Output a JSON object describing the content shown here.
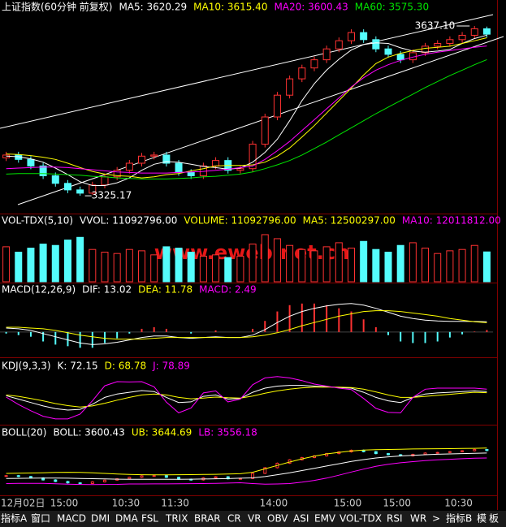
{
  "chart_data": [
    {
      "type": "candlestick",
      "header": [
        {
          "text": "上证指数(60分钟 前复权)",
          "color": "#ffffff"
        },
        {
          "text": "MA5: 3620.29",
          "color": "#ffffff"
        },
        {
          "text": "MA10: 3615.40",
          "color": "#ffff00"
        },
        {
          "text": "MA20: 3600.43",
          "color": "#ff00ff"
        },
        {
          "text": "MA60: 3575.30",
          "color": "#00e600"
        }
      ],
      "ylim": [
        3297,
        3652
      ],
      "candles": {
        "open": [
          3395,
          3400,
          3392,
          3380,
          3362,
          3348,
          3336,
          3330,
          3345,
          3360,
          3372,
          3385,
          3398,
          3400,
          3385,
          3368,
          3362,
          3380,
          3390,
          3372,
          3375,
          3420,
          3470,
          3510,
          3540,
          3560,
          3575,
          3595,
          3610,
          3625,
          3612,
          3595,
          3585,
          3575,
          3588,
          3600,
          3605,
          3612,
          3620,
          3632
        ],
        "high": [
          3406,
          3406,
          3398,
          3386,
          3368,
          3354,
          3342,
          3351,
          3366,
          3378,
          3391,
          3404,
          3406,
          3406,
          3391,
          3374,
          3386,
          3396,
          3396,
          3381,
          3426,
          3476,
          3516,
          3546,
          3566,
          3581,
          3601,
          3616,
          3631,
          3631,
          3618,
          3601,
          3591,
          3594,
          3606,
          3611,
          3618,
          3626,
          3637.1,
          3636
        ],
        "low": [
          3389,
          3386,
          3374,
          3356,
          3342,
          3330,
          3325.17,
          3327,
          3339,
          3354,
          3366,
          3379,
          3392,
          3379,
          3362,
          3356,
          3356,
          3374,
          3366,
          3366,
          3369,
          3414,
          3464,
          3504,
          3534,
          3554,
          3569,
          3589,
          3604,
          3606,
          3589,
          3579,
          3569,
          3569,
          3582,
          3594,
          3599,
          3606,
          3614,
          3616
        ],
        "close": [
          3400,
          3392,
          3380,
          3362,
          3348,
          3336,
          3330,
          3345,
          3360,
          3372,
          3385,
          3398,
          3400,
          3385,
          3368,
          3362,
          3380,
          3390,
          3372,
          3375,
          3420,
          3470,
          3510,
          3540,
          3560,
          3575,
          3595,
          3610,
          3625,
          3612,
          3595,
          3585,
          3575,
          3588,
          3600,
          3605,
          3612,
          3620,
          3632,
          3622
        ]
      },
      "up_color": "#ff3232",
      "down_color": "#54fcfc",
      "series": [
        {
          "color": "#ffffff",
          "values": [
            3398,
            3397,
            3393,
            3387,
            3376,
            3364,
            3351,
            3344,
            3344,
            3349,
            3358,
            3372,
            3383,
            3388,
            3387,
            3383,
            3379,
            3377,
            3374,
            3376,
            3387,
            3405,
            3429,
            3463,
            3500,
            3531,
            3556,
            3576,
            3593,
            3603,
            3606,
            3605,
            3597,
            3591,
            3589,
            3591,
            3594,
            3605,
            3614,
            3620.29
          ]
        },
        {
          "color": "#ffff00",
          "values": [
            3402,
            3401,
            3399,
            3396,
            3392,
            3385,
            3377,
            3370,
            3365,
            3362,
            3361,
            3358,
            3360,
            3364,
            3366,
            3371,
            3375,
            3380,
            3381,
            3381,
            3382,
            3387,
            3398,
            3413,
            3433,
            3454,
            3477,
            3500,
            3523,
            3547,
            3568,
            3580,
            3587,
            3592,
            3596,
            3598,
            3600,
            3605,
            3610,
            3615.4
          ]
        },
        {
          "color": "#ff00ff",
          "values": [
            3375,
            3376,
            3377,
            3378,
            3378,
            3377,
            3375,
            3373,
            3371,
            3369,
            3368,
            3367,
            3367,
            3367,
            3368,
            3369,
            3370,
            3372,
            3374,
            3377,
            3380,
            3392,
            3408,
            3425,
            3445,
            3465,
            3485,
            3505,
            3525,
            3542,
            3556,
            3566,
            3574,
            3580,
            3585,
            3589,
            3592,
            3595,
            3598,
            3600.43
          ]
        },
        {
          "color": "#00e600",
          "values": [
            3365,
            3366,
            3366,
            3366,
            3365,
            3364,
            3363,
            3361,
            3360,
            3358,
            3357,
            3356,
            3356,
            3356,
            3357,
            3358,
            3360,
            3361,
            3363,
            3365,
            3369,
            3375,
            3382,
            3390,
            3400,
            3412,
            3424,
            3437,
            3450,
            3463,
            3476,
            3488,
            3500,
            3512,
            3524,
            3535,
            3546,
            3556,
            3566,
            3575.3
          ]
        }
      ],
      "annotations": [
        {
          "text": "3325.17",
          "index": 6,
          "value": 3325.17
        },
        {
          "text": "3637.10",
          "index": 38,
          "value": 3637.1
        }
      ]
    },
    {
      "type": "volume",
      "header": [
        {
          "text": "VOL-TDX(5,10)",
          "color": "#ffffff"
        },
        {
          "text": "VVOL: 11092796.00",
          "color": "#ffffff"
        },
        {
          "text": "VOLUME: 11092796.00",
          "color": "#ffff00"
        },
        {
          "text": "MA5: 12500297.00",
          "color": "#ffff00"
        },
        {
          "text": "MA10: 12011812.00",
          "color": "#ff00ff"
        }
      ],
      "ylim": [
        0,
        19000000
      ],
      "values": [
        13000000,
        11000000,
        12500000,
        14000000,
        13500000,
        15500000,
        16500000,
        12000000,
        11000000,
        10500000,
        12000000,
        11500000,
        10000000,
        13000000,
        12500000,
        11000000,
        9500000,
        10000000,
        9000000,
        9500000,
        14000000,
        17500000,
        16000000,
        13500000,
        12000000,
        11500000,
        13000000,
        14500000,
        12500000,
        15000000,
        12000000,
        11000000,
        13500000,
        14500000,
        12500000,
        10500000,
        11500000,
        12000000,
        13500000,
        11092796
      ]
    },
    {
      "type": "macd",
      "header": [
        {
          "text": "MACD(12,26,9)",
          "color": "#ffffff"
        },
        {
          "text": "DIF: 13.02",
          "color": "#ffffff"
        },
        {
          "text": "DEA: 11.78",
          "color": "#ffff00"
        },
        {
          "text": "MACD: 2.49",
          "color": "#ff00ff"
        }
      ],
      "ylim": [
        -30,
        42
      ],
      "values": [
        -2,
        -4,
        -6,
        -12,
        -16,
        -18,
        -20,
        -20,
        -14,
        -8,
        -2,
        4,
        6,
        4,
        0,
        -2,
        0,
        2,
        0,
        0,
        4,
        14,
        26,
        34,
        36,
        36,
        34,
        30,
        26,
        16,
        6,
        -4,
        -12,
        -14,
        -14,
        -12,
        -7,
        -3,
        0.6,
        2.49
      ],
      "up_color": "#ff3232",
      "down_color": "#54fcfc",
      "series": [
        {
          "color": "#ffffff",
          "values": [
            5,
            4,
            2,
            -2,
            -6,
            -10,
            -14,
            -16,
            -15,
            -13,
            -10,
            -7,
            -5,
            -5,
            -7,
            -8,
            -7,
            -6,
            -7,
            -7,
            -4,
            3,
            12,
            20,
            26,
            30,
            33,
            35,
            36,
            34,
            30,
            25,
            20,
            17,
            15,
            14,
            13.5,
            13.5,
            13.3,
            13.02
          ]
        },
        {
          "color": "#ffff00",
          "values": [
            6,
            6,
            5,
            4,
            2,
            -1,
            -4,
            -6,
            -8,
            -9,
            -9,
            -9,
            -8,
            -7,
            -7,
            -7,
            -7,
            -7,
            -7,
            -7,
            -6,
            -4,
            -1,
            3,
            8,
            12,
            16,
            20,
            23,
            26,
            27,
            27,
            26,
            24,
            22,
            20,
            17,
            15,
            13,
            11.78
          ]
        }
      ]
    },
    {
      "type": "lines",
      "header": [
        {
          "text": "KDJ(9,3,3)",
          "color": "#ffffff"
        },
        {
          "text": "K: 72.15",
          "color": "#ffffff"
        },
        {
          "text": "D: 68.78",
          "color": "#ffff00"
        },
        {
          "text": "J: 78.89",
          "color": "#ff00ff"
        }
      ],
      "ylim": [
        -20,
        120
      ],
      "series": [
        {
          "color": "#ffffff",
          "values": [
            60,
            50,
            40,
            30,
            22,
            18,
            20,
            35,
            55,
            65,
            70,
            75,
            72,
            55,
            40,
            42,
            58,
            62,
            50,
            52,
            70,
            82,
            88,
            90,
            90,
            88,
            86,
            84,
            82,
            70,
            55,
            45,
            40,
            55,
            65,
            68,
            70,
            72,
            74,
            72.15
          ]
        },
        {
          "color": "#ffff00",
          "values": [
            62,
            58,
            52,
            45,
            37,
            31,
            27,
            30,
            38,
            47,
            55,
            62,
            65,
            62,
            55,
            51,
            53,
            56,
            54,
            53,
            59,
            67,
            74,
            79,
            83,
            85,
            85,
            85,
            84,
            79,
            71,
            62,
            55,
            55,
            58,
            61,
            64,
            67,
            70,
            68.78
          ]
        },
        {
          "color": "#ff00ff",
          "values": [
            56,
            34,
            16,
            0,
            -8,
            -8,
            6,
            45,
            89,
            101,
            100,
            101,
            86,
            41,
            10,
            24,
            68,
            74,
            42,
            50,
            92,
            112,
            116,
            112,
            104,
            94,
            88,
            82,
            78,
            52,
            23,
            11,
            10,
            55,
            79,
            82,
            82,
            82,
            82,
            78.89
          ]
        }
      ]
    },
    {
      "type": "boll",
      "header": [
        {
          "text": "BOLL(20)",
          "color": "#ffffff"
        },
        {
          "text": "BOLL: 3600.43",
          "color": "#ffffff"
        },
        {
          "text": "UB: 3644.69",
          "color": "#ffff00"
        },
        {
          "text": "LB: 3556.18",
          "color": "#ff00ff"
        }
      ],
      "ylim": [
        3240,
        3700
      ],
      "categories": [
        "12月02日",
        null,
        null,
        null,
        "15:00",
        null,
        null,
        null,
        null,
        "10:30",
        null,
        null,
        null,
        "11:30",
        null,
        null,
        null,
        null,
        null,
        null,
        null,
        "14:00",
        null,
        null,
        null,
        null,
        null,
        "15:00",
        null,
        null,
        null,
        "15:00",
        null,
        null,
        null,
        null,
        "10:30",
        null,
        null,
        null
      ],
      "series": [
        {
          "color": "#ffffff",
          "values": [
            3375,
            3376,
            3377,
            3378,
            3378,
            3377,
            3375,
            3373,
            3371,
            3369,
            3368,
            3367,
            3367,
            3367,
            3368,
            3369,
            3370,
            3372,
            3374,
            3377,
            3380,
            3392,
            3408,
            3425,
            3445,
            3465,
            3485,
            3505,
            3525,
            3542,
            3556,
            3566,
            3574,
            3580,
            3585,
            3589,
            3592,
            3595,
            3598,
            3600.43
          ]
        },
        {
          "color": "#ffff00",
          "values": [
            3420,
            3421,
            3423,
            3425,
            3428,
            3430,
            3428,
            3425,
            3420,
            3415,
            3410,
            3408,
            3407,
            3407,
            3408,
            3409,
            3410,
            3412,
            3414,
            3417,
            3430,
            3460,
            3490,
            3520,
            3548,
            3572,
            3592,
            3606,
            3618,
            3626,
            3630,
            3632,
            3634,
            3636,
            3637,
            3638,
            3639,
            3640,
            3642,
            3644.69
          ]
        },
        {
          "color": "#ff00ff",
          "values": [
            3330,
            3331,
            3331,
            3331,
            3328,
            3324,
            3322,
            3321,
            3322,
            3323,
            3326,
            3326,
            3327,
            3327,
            3328,
            3329,
            3330,
            3332,
            3334,
            3337,
            3330,
            3324,
            3326,
            3330,
            3342,
            3358,
            3378,
            3404,
            3432,
            3458,
            3482,
            3500,
            3514,
            3524,
            3533,
            3540,
            3545,
            3550,
            3554,
            3556.18
          ]
        }
      ]
    }
  ],
  "watermark": "www.eweb.net.cn",
  "toolbar": {
    "tabs": [
      "指标A",
      "窗口",
      "MACD",
      "DMI",
      "DMA",
      "FSL",
      "TRIX",
      "BRAR",
      "CR",
      "VR",
      "OBV",
      "ASI",
      "EMV",
      "VOL-TDX",
      "RSI",
      "WR",
      ">",
      "指标B",
      "模",
      "板"
    ]
  }
}
